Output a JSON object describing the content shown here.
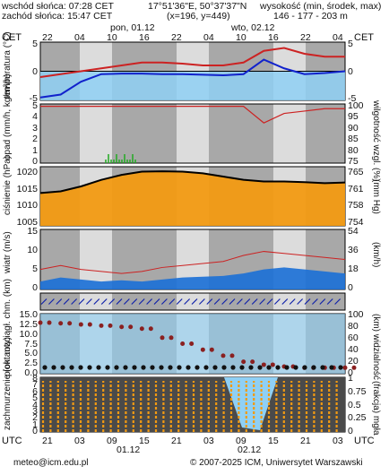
{
  "header": {
    "sunrise": "wschód słońca: 07:28 CET",
    "sunset": "zachód słońca: 15:47 CET",
    "coords": "17°51'36\"E, 50°37'37\"N",
    "grid": "(x=196, y=449)",
    "altitude_label": "wysokość (min, środek, max)",
    "altitude_values": "146 - 177 - 203 m"
  },
  "top_axis": {
    "tz_left": "CET",
    "tz_right": "CET",
    "hours": [
      "22",
      "04",
      "10",
      "16",
      "22",
      "04",
      "10",
      "16",
      "22",
      "04"
    ],
    "days": [
      "pon, 01.12",
      "wto, 02.12"
    ]
  },
  "bottom_axis": {
    "tz_left": "UTC",
    "tz_right": "UTC",
    "hours": [
      "21",
      "03",
      "09",
      "15",
      "21",
      "03",
      "09",
      "15",
      "21",
      "03"
    ],
    "days": [
      "01.12",
      "02.12"
    ]
  },
  "footer": {
    "email": "meteo@icm.edu.pl",
    "copyright": "© 2007-2025 ICM, Uniwersytet Warszawski"
  },
  "colors": {
    "grid_dark": "#a8a8a8",
    "grid_light": "#dcdcdc",
    "temp": "#cc2222",
    "dew": "#1122cc",
    "sky": "#8fd0f5",
    "pressure_fill": "#f29a12",
    "precip": "#22aa22"
  },
  "chart_data": [
    {
      "type": "line",
      "name": "temperature",
      "ylabel": "temperatura (°C)",
      "ylim_left": [
        -5,
        5
      ],
      "yticks_left": [
        "5",
        "0",
        "-5"
      ],
      "yticks_right": [
        "5",
        "0",
        "-5"
      ],
      "x_hours_cet": [
        22,
        4,
        10,
        16,
        22,
        4,
        10,
        16,
        22,
        4
      ],
      "series": [
        {
          "values": [
            -1.0,
            -0.5,
            0.0,
            0.5,
            1.0,
            1.5,
            1.5,
            1.3,
            1.0,
            1.0,
            1.5,
            3.5,
            4.0,
            3.0,
            2.5,
            2.5
          ]
        },
        {
          "values": [
            -4.5,
            -4.0,
            -1.8,
            -0.5,
            -0.4,
            -0.4,
            -0.5,
            -0.5,
            -0.6,
            -0.7,
            -0.5,
            2.0,
            0.5,
            -0.5,
            -0.3,
            0.0
          ]
        }
      ]
    },
    {
      "type": "line",
      "name": "precipitation-humidity",
      "ylabel": "opad (mm/h, kg/m²/h)",
      "ylabel_right": "wilgotność wzgl. (%)",
      "yticks_left": [
        "5",
        "4",
        "3",
        "2",
        "1",
        "0"
      ],
      "yticks_right": [
        "100",
        "95",
        "90",
        "85",
        "80",
        "75"
      ],
      "series": [
        {
          "values": [
            99,
            99,
            99,
            99,
            99,
            99,
            99,
            99,
            99,
            99,
            99,
            92,
            96,
            97,
            98,
            98
          ]
        }
      ]
    },
    {
      "type": "area",
      "name": "pressure",
      "ylabel": "ciśnienie (hPa)",
      "ylabel_right": "(mm Hg)",
      "yticks_left": [
        "1020",
        "1015",
        "1010",
        "1005"
      ],
      "yticks_right": [
        "765",
        "761",
        "758",
        "754"
      ],
      "series": [
        {
          "values": [
            1015.0,
            1015.5,
            1017.0,
            1019.0,
            1020.5,
            1021.5,
            1021.6,
            1021.5,
            1021.0,
            1020.0,
            1019.0,
            1018.5,
            1018.5,
            1018.3,
            1018.0,
            1018.2
          ]
        }
      ]
    },
    {
      "type": "area",
      "name": "wind",
      "ylabel": "wiatr (m/s)",
      "ylabel_right": "(km/h)",
      "yticks_left": [
        "15",
        "10",
        "5",
        "0"
      ],
      "yticks_right": [
        "54",
        "36",
        "18",
        "0"
      ],
      "series": [
        {
          "values": [
            2.0,
            3.0,
            2.5,
            2.0,
            2.3,
            2.0,
            2.5,
            3.0,
            3.2,
            3.4,
            4.0,
            5.0,
            5.5,
            5.0,
            4.5,
            4.0
          ]
        },
        {
          "values": [
            5.0,
            6.0,
            5.0,
            4.5,
            4.0,
            4.5,
            5.5,
            6.0,
            6.5,
            7.0,
            8.5,
            9.5,
            9.0,
            8.5,
            8.0,
            7.5
          ]
        }
      ]
    },
    {
      "type": "line",
      "name": "visibility",
      "ylabel": "pion. rozciągł. chm. (km)",
      "ylabel_right": "(km) widzialność",
      "yticks_left": [
        "15.0",
        "12.5",
        "10.0",
        "7.5",
        "5.0",
        "2.5",
        "0.0"
      ],
      "yticks_right": [
        "100",
        "80",
        "60",
        "40",
        "20",
        "0"
      ],
      "series": [
        {
          "values": [
            85,
            84,
            82,
            80,
            78,
            75,
            60,
            50,
            40,
            30,
            20,
            15,
            12,
            10,
            10,
            10
          ]
        }
      ]
    },
    {
      "type": "area",
      "name": "cloud-cover",
      "ylabel": "zachmurzenie (oktanty)",
      "ylabel_right": "(frakcja) mgła",
      "yticks_left": [
        "8",
        "7",
        "6",
        "5",
        "4",
        "3",
        "2",
        "1",
        "0"
      ],
      "yticks_right": [
        "1",
        "0.75",
        "0.5",
        "0.25",
        "0"
      ],
      "series": [
        {
          "values": [
            8,
            8,
            8,
            8,
            8,
            8,
            8,
            8,
            8,
            8,
            3,
            1,
            6,
            8,
            8,
            8
          ]
        }
      ]
    }
  ]
}
